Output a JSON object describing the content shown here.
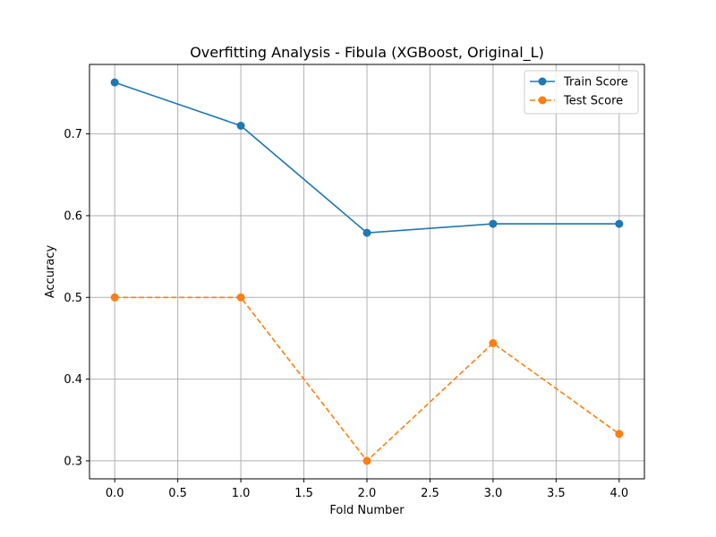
{
  "chart_data": {
    "type": "line",
    "title": "Overfitting Analysis - Fibula (XGBoost, Original_L)",
    "xlabel": "Fold Number",
    "ylabel": "Accuracy",
    "xlim": [
      -0.2,
      4.2
    ],
    "ylim": [
      0.278,
      0.785
    ],
    "xticks": [
      "0.0",
      "0.5",
      "1.0",
      "1.5",
      "2.0",
      "2.5",
      "3.0",
      "3.5",
      "4.0"
    ],
    "yticks": [
      "0.3",
      "0.4",
      "0.5",
      "0.6",
      "0.7"
    ],
    "grid": true,
    "legend_position": "top-right",
    "x": [
      0,
      1,
      2,
      3,
      4
    ],
    "series": [
      {
        "name": "Train Score",
        "values": [
          0.763,
          0.71,
          0.579,
          0.59,
          0.59
        ],
        "color": "#1f77b4",
        "linestyle": "solid",
        "marker": "circle"
      },
      {
        "name": "Test Score",
        "values": [
          0.5,
          0.5,
          0.3,
          0.444,
          0.333
        ],
        "color": "#ff7f0e",
        "linestyle": "dashed",
        "marker": "circle"
      }
    ]
  }
}
